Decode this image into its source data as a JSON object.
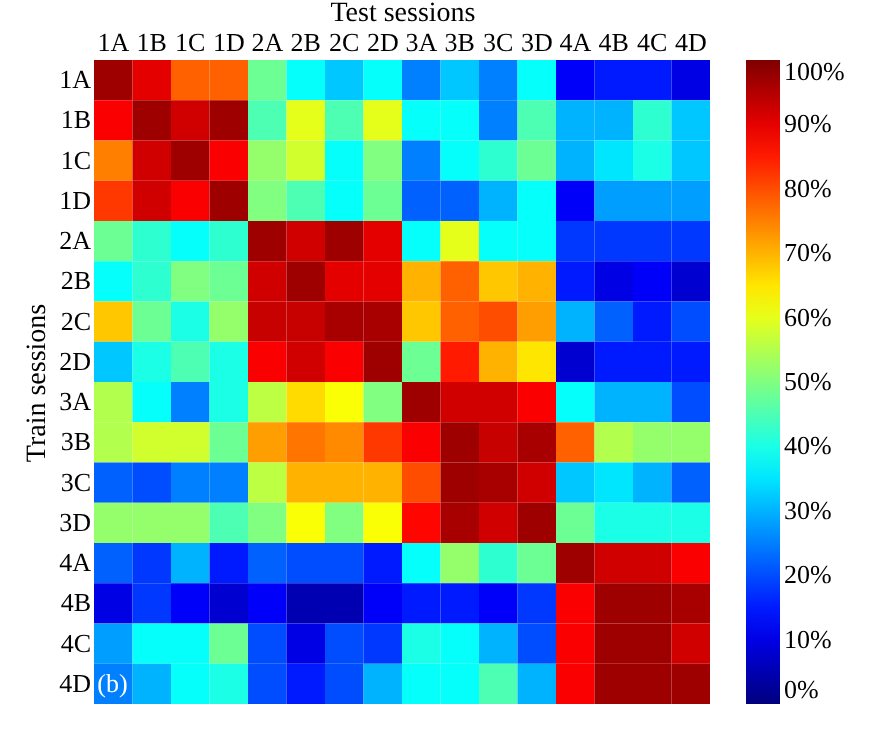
{
  "chart_data": {
    "type": "heatmap",
    "xlabel": "Test sessions",
    "ylabel": "Train sessions",
    "categories": [
      "1A",
      "1B",
      "1C",
      "1D",
      "2A",
      "2B",
      "2C",
      "2D",
      "3A",
      "3B",
      "3C",
      "3D",
      "4A",
      "4B",
      "4C",
      "4D"
    ],
    "y_categories": [
      "1A",
      "1B",
      "1C",
      "1D",
      "2A",
      "2B",
      "2C",
      "2D",
      "3A",
      "3B",
      "3C",
      "3D",
      "4A",
      "4B",
      "4C",
      "4D"
    ],
    "cells": [
      [
        97,
        90,
        78,
        78,
        48,
        38,
        32,
        38,
        25,
        32,
        25,
        38,
        12,
        15,
        15,
        10
      ],
      [
        88,
        97,
        92,
        97,
        45,
        60,
        45,
        60,
        38,
        38,
        25,
        45,
        30,
        30,
        42,
        32
      ],
      [
        75,
        92,
        97,
        88,
        52,
        58,
        38,
        50,
        25,
        38,
        42,
        48,
        30,
        35,
        40,
        32
      ],
      [
        82,
        92,
        88,
        97,
        50,
        45,
        38,
        48,
        22,
        22,
        30,
        38,
        12,
        28,
        28,
        28
      ],
      [
        48,
        42,
        38,
        42,
        97,
        92,
        97,
        90,
        38,
        60,
        38,
        38,
        18,
        18,
        18,
        18
      ],
      [
        38,
        42,
        50,
        48,
        92,
        97,
        90,
        90,
        70,
        78,
        68,
        70,
        15,
        10,
        12,
        8
      ],
      [
        68,
        48,
        40,
        52,
        93,
        93,
        96,
        96,
        68,
        78,
        80,
        72,
        30,
        22,
        15,
        20
      ],
      [
        32,
        40,
        45,
        40,
        88,
        92,
        88,
        97,
        48,
        85,
        70,
        65,
        8,
        15,
        15,
        15
      ],
      [
        55,
        38,
        25,
        40,
        56,
        66,
        62,
        50,
        97,
        92,
        92,
        88,
        38,
        30,
        30,
        20
      ],
      [
        55,
        58,
        58,
        48,
        72,
        76,
        74,
        82,
        88,
        97,
        93,
        96,
        78,
        55,
        52,
        52
      ],
      [
        22,
        20,
        25,
        25,
        56,
        70,
        70,
        70,
        80,
        97,
        96,
        92,
        32,
        35,
        30,
        22
      ],
      [
        52,
        52,
        52,
        45,
        50,
        62,
        50,
        62,
        87,
        96,
        92,
        97,
        48,
        40,
        40,
        40
      ],
      [
        22,
        18,
        30,
        15,
        22,
        20,
        20,
        15,
        38,
        52,
        42,
        48,
        97,
        92,
        92,
        88
      ],
      [
        10,
        18,
        12,
        8,
        12,
        5,
        5,
        12,
        15,
        15,
        12,
        18,
        88,
        97,
        97,
        96
      ],
      [
        28,
        38,
        38,
        48,
        20,
        10,
        20,
        18,
        40,
        38,
        30,
        20,
        88,
        97,
        97,
        92
      ],
      [
        25,
        30,
        38,
        40,
        20,
        15,
        20,
        30,
        38,
        38,
        45,
        30,
        88,
        97,
        97,
        97
      ]
    ],
    "clim": [
      0,
      100
    ],
    "cticks": [
      {
        "value": 0,
        "label": "0%"
      },
      {
        "value": 10,
        "label": "10%"
      },
      {
        "value": 20,
        "label": "20%"
      },
      {
        "value": 30,
        "label": "30%"
      },
      {
        "value": 40,
        "label": "40%"
      },
      {
        "value": 50,
        "label": "50%"
      },
      {
        "value": 60,
        "label": "60%"
      },
      {
        "value": 70,
        "label": "70%"
      },
      {
        "value": 80,
        "label": "80%"
      },
      {
        "value": 90,
        "label": "90%"
      },
      {
        "value": 100,
        "label": "100%"
      }
    ],
    "annotations": [
      "(b)"
    ]
  }
}
